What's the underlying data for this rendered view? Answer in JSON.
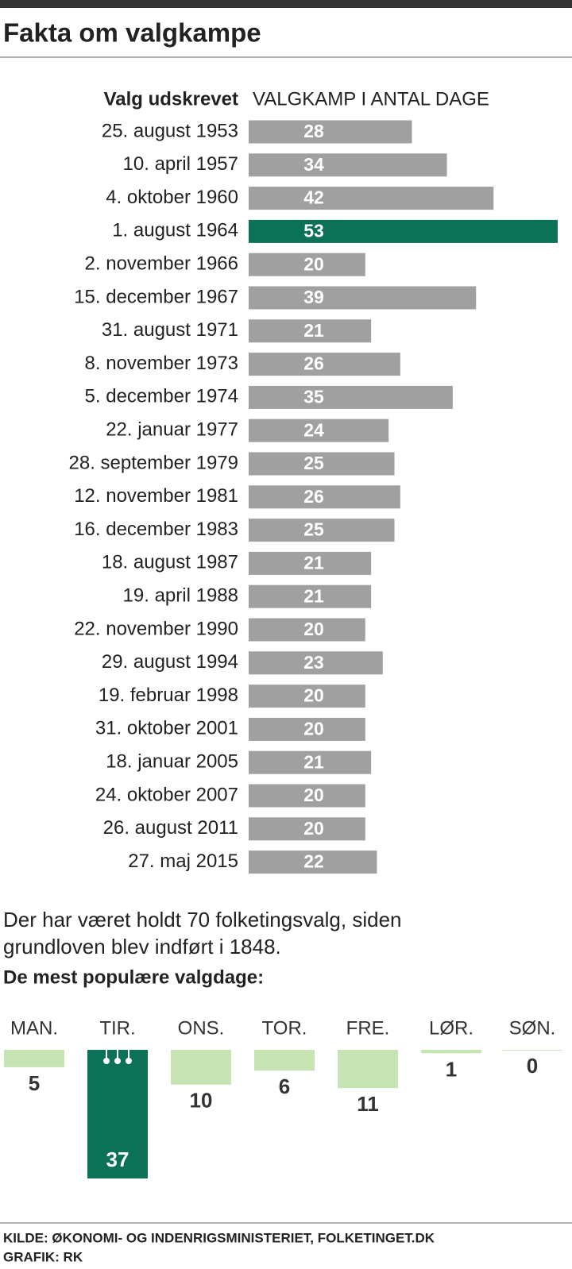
{
  "title": "Fakta om valgkampe",
  "chart_data": [
    {
      "type": "bar",
      "category_header": "Valg udskrevet",
      "value_header": "VALGKAMP I ANTAL DAGE",
      "categories": [
        "25. august 1953",
        "10. april 1957",
        "4. oktober 1960",
        "1. august 1964",
        "2. november 1966",
        "15. december 1967",
        "31. august 1971",
        "8. november 1973",
        "5. december 1974",
        "22. januar 1977",
        "28. september 1979",
        "12. november 1981",
        "16. december 1983",
        "18. august 1987",
        "19. april 1988",
        "22. november 1990",
        "29. august 1994",
        "19. februar 1998",
        "31. oktober 2001",
        "18. januar 2005",
        "24. oktober 2007",
        "26. august 2011",
        "27. maj 2015"
      ],
      "values": [
        28,
        34,
        42,
        53,
        20,
        39,
        21,
        26,
        35,
        24,
        25,
        26,
        25,
        21,
        21,
        20,
        23,
        20,
        20,
        21,
        20,
        20,
        22
      ],
      "colors": [
        "#a0a0a0",
        "#a0a0a0",
        "#a0a0a0",
        "#0b7157",
        "#a0a0a0",
        "#a0a0a0",
        "#a0a0a0",
        "#a0a0a0",
        "#a0a0a0",
        "#a0a0a0",
        "#a0a0a0",
        "#a0a0a0",
        "#a0a0a0",
        "#a0a0a0",
        "#a0a0a0",
        "#a0a0a0",
        "#a0a0a0",
        "#a0a0a0",
        "#a0a0a0",
        "#a0a0a0",
        "#a0a0a0",
        "#a0a0a0",
        "#a0a0a0"
      ],
      "xlim": [
        0,
        53
      ]
    },
    {
      "type": "column",
      "note": [
        "Der har været holdt 70 folketingsvalg, siden",
        "grundloven blev indført i 1848."
      ],
      "subtitle": "De mest populære valgdage:",
      "categories": [
        "MAN.",
        "TIR.",
        "ONS.",
        "TOR.",
        "FRE.",
        "LØR.",
        "SØN."
      ],
      "values": [
        5,
        37,
        10,
        6,
        11,
        1,
        0
      ],
      "colors": [
        "#c6e3b4",
        "#0b7157",
        "#c6e3b4",
        "#c6e3b4",
        "#c6e3b4",
        "#c6e3b4",
        "#c6e3b4"
      ],
      "ylim": [
        0,
        37
      ]
    }
  ],
  "footer": [
    "KILDE: ØKONOMI- OG INDENRIGSMINISTERIET, FOLKETINGET.DK",
    "GRAFIK: RK"
  ]
}
